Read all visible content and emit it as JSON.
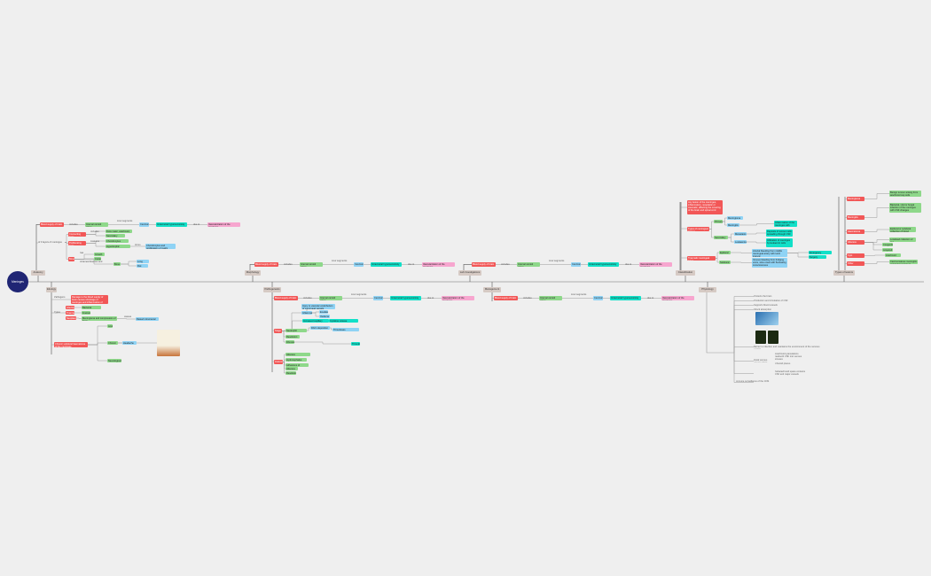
{
  "root": "Meninges",
  "categories": {
    "anatomy": "Anatomy",
    "etiology": "Etiology",
    "morphology": "Morphology",
    "pathogenesis": "Pathogenesis",
    "lab": "Lab Investigations",
    "management": "Management",
    "classification": "Classification",
    "physiology": "Physiology",
    "types": "Types of lesions"
  },
  "chain": {
    "blood": "Blood supply of brain",
    "includes": "Includes",
    "ica": "Internal carotid artery",
    "four": "Four segments",
    "cervical": "Cervical",
    "hyper": "Intracranial hypersensitivity",
    "dueto": "due to",
    "vasc": "Vascularization of the meninges"
  },
  "anatomy": {
    "layers": "of 3 layers of meninges",
    "n1": "Connecting zone",
    "n2": "Proliferating zone",
    "n3": "Bone",
    "c1": "Includes",
    "c2": "Features",
    "g1": "Dura mater, arachnoid, pia",
    "g2": "Secondary ossification",
    "g3": "Chondrocytes proliferate",
    "g4": "Hypertrophic chondrocytes",
    "b1": "Chondrocytes and proliferation of matrix factors",
    "l1": "has zones",
    "g5": "Growth plate",
    "g6": "Cortex",
    "l2": "Intramembranous and endochondral",
    "g7": "Bone",
    "l3": "forms",
    "b2": "Long bones",
    "b3": "Flat bones"
  },
  "etiology": {
    "r1": "Damage to the blood supply of brain causes shrinkage of meninges and inflammation of dura",
    "l1": "Pathogens",
    "l2": "Types",
    "r2": "Infection",
    "r3": "Trauma",
    "r4": "Neoplasm",
    "g1": "Bacterial meningitis",
    "g2": "Fracture",
    "g3": "Meningioma and compression of brain",
    "l3": "causes",
    "b1": "Raised intracranial pressure",
    "r5": "Chronic subdural haematoma of the meninges",
    "g4": "Acute",
    "g5": "Chronic",
    "b2": "Headache",
    "g6": "Neurological deficit"
  },
  "pathogenesis": {
    "r1": "Stage",
    "r2": "Outcome",
    "b1": "Injury to vascular endothelium of meningeal vessels",
    "b2": "Inflammation",
    "b3": "Exudate",
    "b4": "Oedema",
    "t1": "Increased capillary permeability",
    "g1": "Neutrophil migration",
    "b5": "Fibrin deposition",
    "t2": "Cytokine release",
    "b6": "Thrombosis",
    "g2": "Resolution",
    "g3": "Fibrosis",
    "g4": "Abscess",
    "g5": "Hydrocephalus",
    "g6": "Adhesions of arachnoid"
  },
  "classification": {
    "r0": "Any lesion of the meninges, inflammatory, neoplastic or traumatic, affecting the covering of the brain and spinal cord",
    "r1": "Types of meningeal lesions",
    "g1": "Primary",
    "b1": "Meningioma",
    "b2": "Meningitis",
    "t1": "Inflammation of the meninges with exudate",
    "g2": "Secondary",
    "b3": "Metastasis",
    "b4": "Leukaemia",
    "t2": "Deposits of tumour cells spreading through CSF",
    "t3": "Infiltration of meninges by leukaemic cells",
    "r2": "Traumatic meningeal injury",
    "g3": "Epidural",
    "g4": "Subdural",
    "b5": "Arterial bleeding from middle meningeal artery with lucid interval",
    "b6": "Venous bleeding from bridging veins, slow onset with fluctuating consciousness",
    "t4": "Emergency",
    "t5": "Surgery"
  },
  "types": {
    "r1": "Meningioma",
    "r2": "Meningitis",
    "r3": "Haematoma",
    "r4": "Abscess",
    "r5": "Cyst",
    "r6": "Other",
    "g1": "Benign tumour arising from arachnoid cap cells",
    "g2": "Bacterial, viral or fungal infection of the meninges with CSF changes",
    "g3": "Epidural or subdural collection of blood",
    "g4": "Localised collection of pus",
    "g5": "Arachnoid cyst",
    "g6": "Congenital",
    "g7": "Acquired",
    "g8": "Carcinomatous meningitis and leptomeningeal spread",
    "g9": "Granulomatous meningitis"
  },
  "physiology": {
    "t1": "Protects the brain",
    "t2": "Production and circulation of CSF",
    "t3": "Supports blood vessels",
    "t4": "Shock absorption",
    "t5": "Barrier to infection and maintains the environment of the nervous system",
    "t6": "Arachnoid granulations reabsorb CSF into venous sinuses",
    "t7": "Dural venous sinuses drain blood from brain",
    "t8": "Choroid plexus",
    "t9": "Subarachnoid space contains CSF and major vessels",
    "t10": "Immune surveillance of the CNS"
  }
}
